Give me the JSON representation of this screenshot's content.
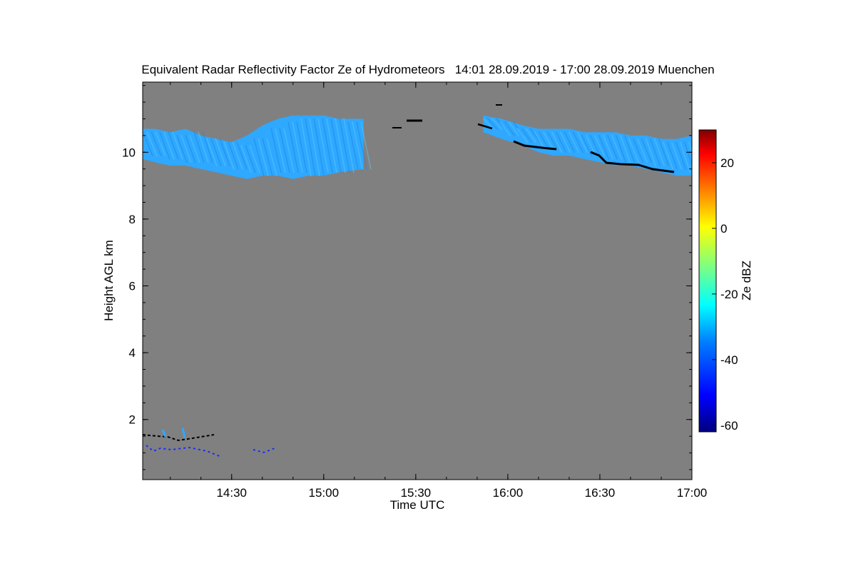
{
  "chart_data": {
    "type": "heatmap",
    "title": "Equivalent Radar Reflectivity Factor Ze of Hydrometeors   14:01 28.09.2019 - 17:00 28.09.2019 Muenchen",
    "xlabel": "Time UTC",
    "ylabel": "Height AGL km",
    "x_range_minutes": [
      841,
      1020
    ],
    "x_ticks": [
      {
        "minute": 870,
        "label": "14:30"
      },
      {
        "minute": 900,
        "label": "15:00"
      },
      {
        "minute": 930,
        "label": "15:30"
      },
      {
        "minute": 960,
        "label": "16:00"
      },
      {
        "minute": 990,
        "label": "16:30"
      },
      {
        "minute": 1020,
        "label": "17:00"
      }
    ],
    "ylim": [
      0.2,
      12.1
    ],
    "y_ticks": [
      2,
      4,
      6,
      8,
      10
    ],
    "colorbar": {
      "label": "Ze dBZ",
      "range": [
        -62,
        30
      ],
      "ticks": [
        -60,
        -40,
        -20,
        0,
        20
      ]
    },
    "background_color": "#808080",
    "cloud_color": "#2fa8ff",
    "series": [
      {
        "layer": "cirrus-1",
        "x": [
          841,
          845,
          850,
          855,
          860,
          865,
          870,
          875,
          880,
          885,
          890,
          895,
          900,
          905,
          913
        ],
        "top": [
          10.7,
          10.7,
          10.6,
          10.7,
          10.5,
          10.4,
          10.3,
          10.5,
          10.8,
          11.0,
          11.1,
          11.1,
          11.1,
          11.0,
          11.0
        ],
        "base": [
          9.8,
          9.7,
          9.6,
          9.6,
          9.5,
          9.4,
          9.3,
          9.2,
          9.3,
          9.3,
          9.2,
          9.3,
          9.3,
          9.4,
          9.5
        ]
      },
      {
        "layer": "cirrus-2",
        "x": [
          952,
          958,
          965,
          970,
          975,
          980,
          985,
          990,
          995,
          1000,
          1005,
          1010,
          1015,
          1020
        ],
        "top": [
          11.1,
          11.0,
          10.8,
          10.7,
          10.7,
          10.7,
          10.6,
          10.6,
          10.6,
          10.5,
          10.5,
          10.4,
          10.4,
          10.5
        ],
        "base": [
          10.6,
          10.4,
          10.2,
          10.0,
          9.9,
          9.9,
          9.8,
          9.7,
          9.6,
          9.6,
          9.5,
          9.4,
          9.3,
          9.3
        ]
      }
    ]
  }
}
